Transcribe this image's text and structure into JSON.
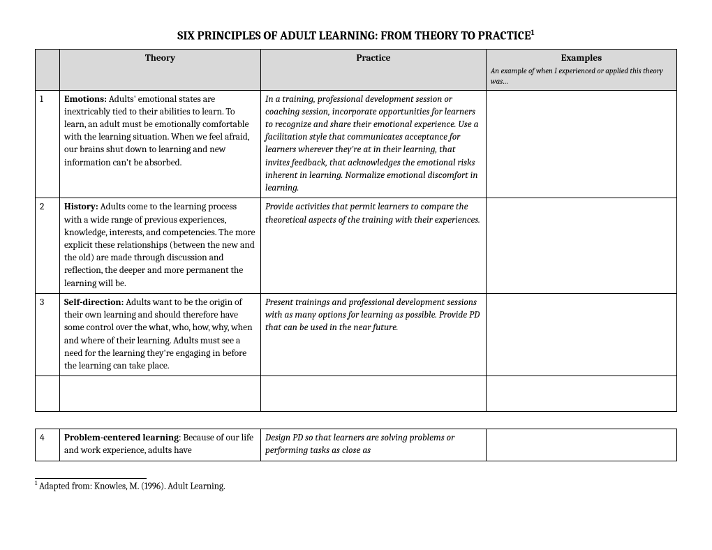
{
  "title": "SIX PRINCIPLES OF ADULT LEARNING: FROM THEORY TO PRACTICE",
  "title_sup": "1",
  "headers": {
    "theory": "Theory",
    "practice": "Practice",
    "examples": "Examples",
    "examples_sub": "An example of when I experienced or applied this theory was…"
  },
  "rows": [
    {
      "num": "1",
      "label": "Emotions:",
      "theory": " Adults' emotional states are inextricably tied to their abilities to learn. To learn, an adult must be emotionally comfortable with the learning situation. When we feel afraid, our brains shut down to learning and new information can't be absorbed.",
      "practice": "In a training, professional development session or coaching session, incorporate opportunities for learners to recognize and share their emotional experience. Use a facilitation style that communicates acceptance for learners wherever they're at in their learning, that invites feedback, that acknowledges the emotional risks inherent in learning. Normalize emotional discomfort in learning.",
      "examples": ""
    },
    {
      "num": "2",
      "label": "History:",
      "theory": " Adults come to the learning process with a wide range of previous experiences, knowledge, interests, and competencies. The more explicit these relationships (between the new and the old) are made through discussion and reflection, the deeper and more permanent the learning will be.",
      "practice": "Provide activities that permit learners to compare the theoretical aspects of the training with their experiences.",
      "examples": ""
    },
    {
      "num": "3",
      "label": "Self-direction:",
      "theory": " Adults want to be the origin of their own learning and should therefore have some control over the what, who, how, why, when and where of their learning. Adults must see a need for the learning they're engaging in before the learning can take place.",
      "practice": "Present trainings and professional development sessions with as many options for learning as possible. Provide PD that can be used in the near future.",
      "examples": ""
    }
  ],
  "rows2": [
    {
      "num": "4",
      "label": "Problem-centered learning",
      "theory": ": Because of our life and work experience, adults have",
      "practice": "Design PD so that learners are solving problems or performing tasks as close as",
      "examples": ""
    }
  ],
  "footnote_sup": "1",
  "footnote": " Adapted from: Knowles, M. (1996). Adult Learning."
}
